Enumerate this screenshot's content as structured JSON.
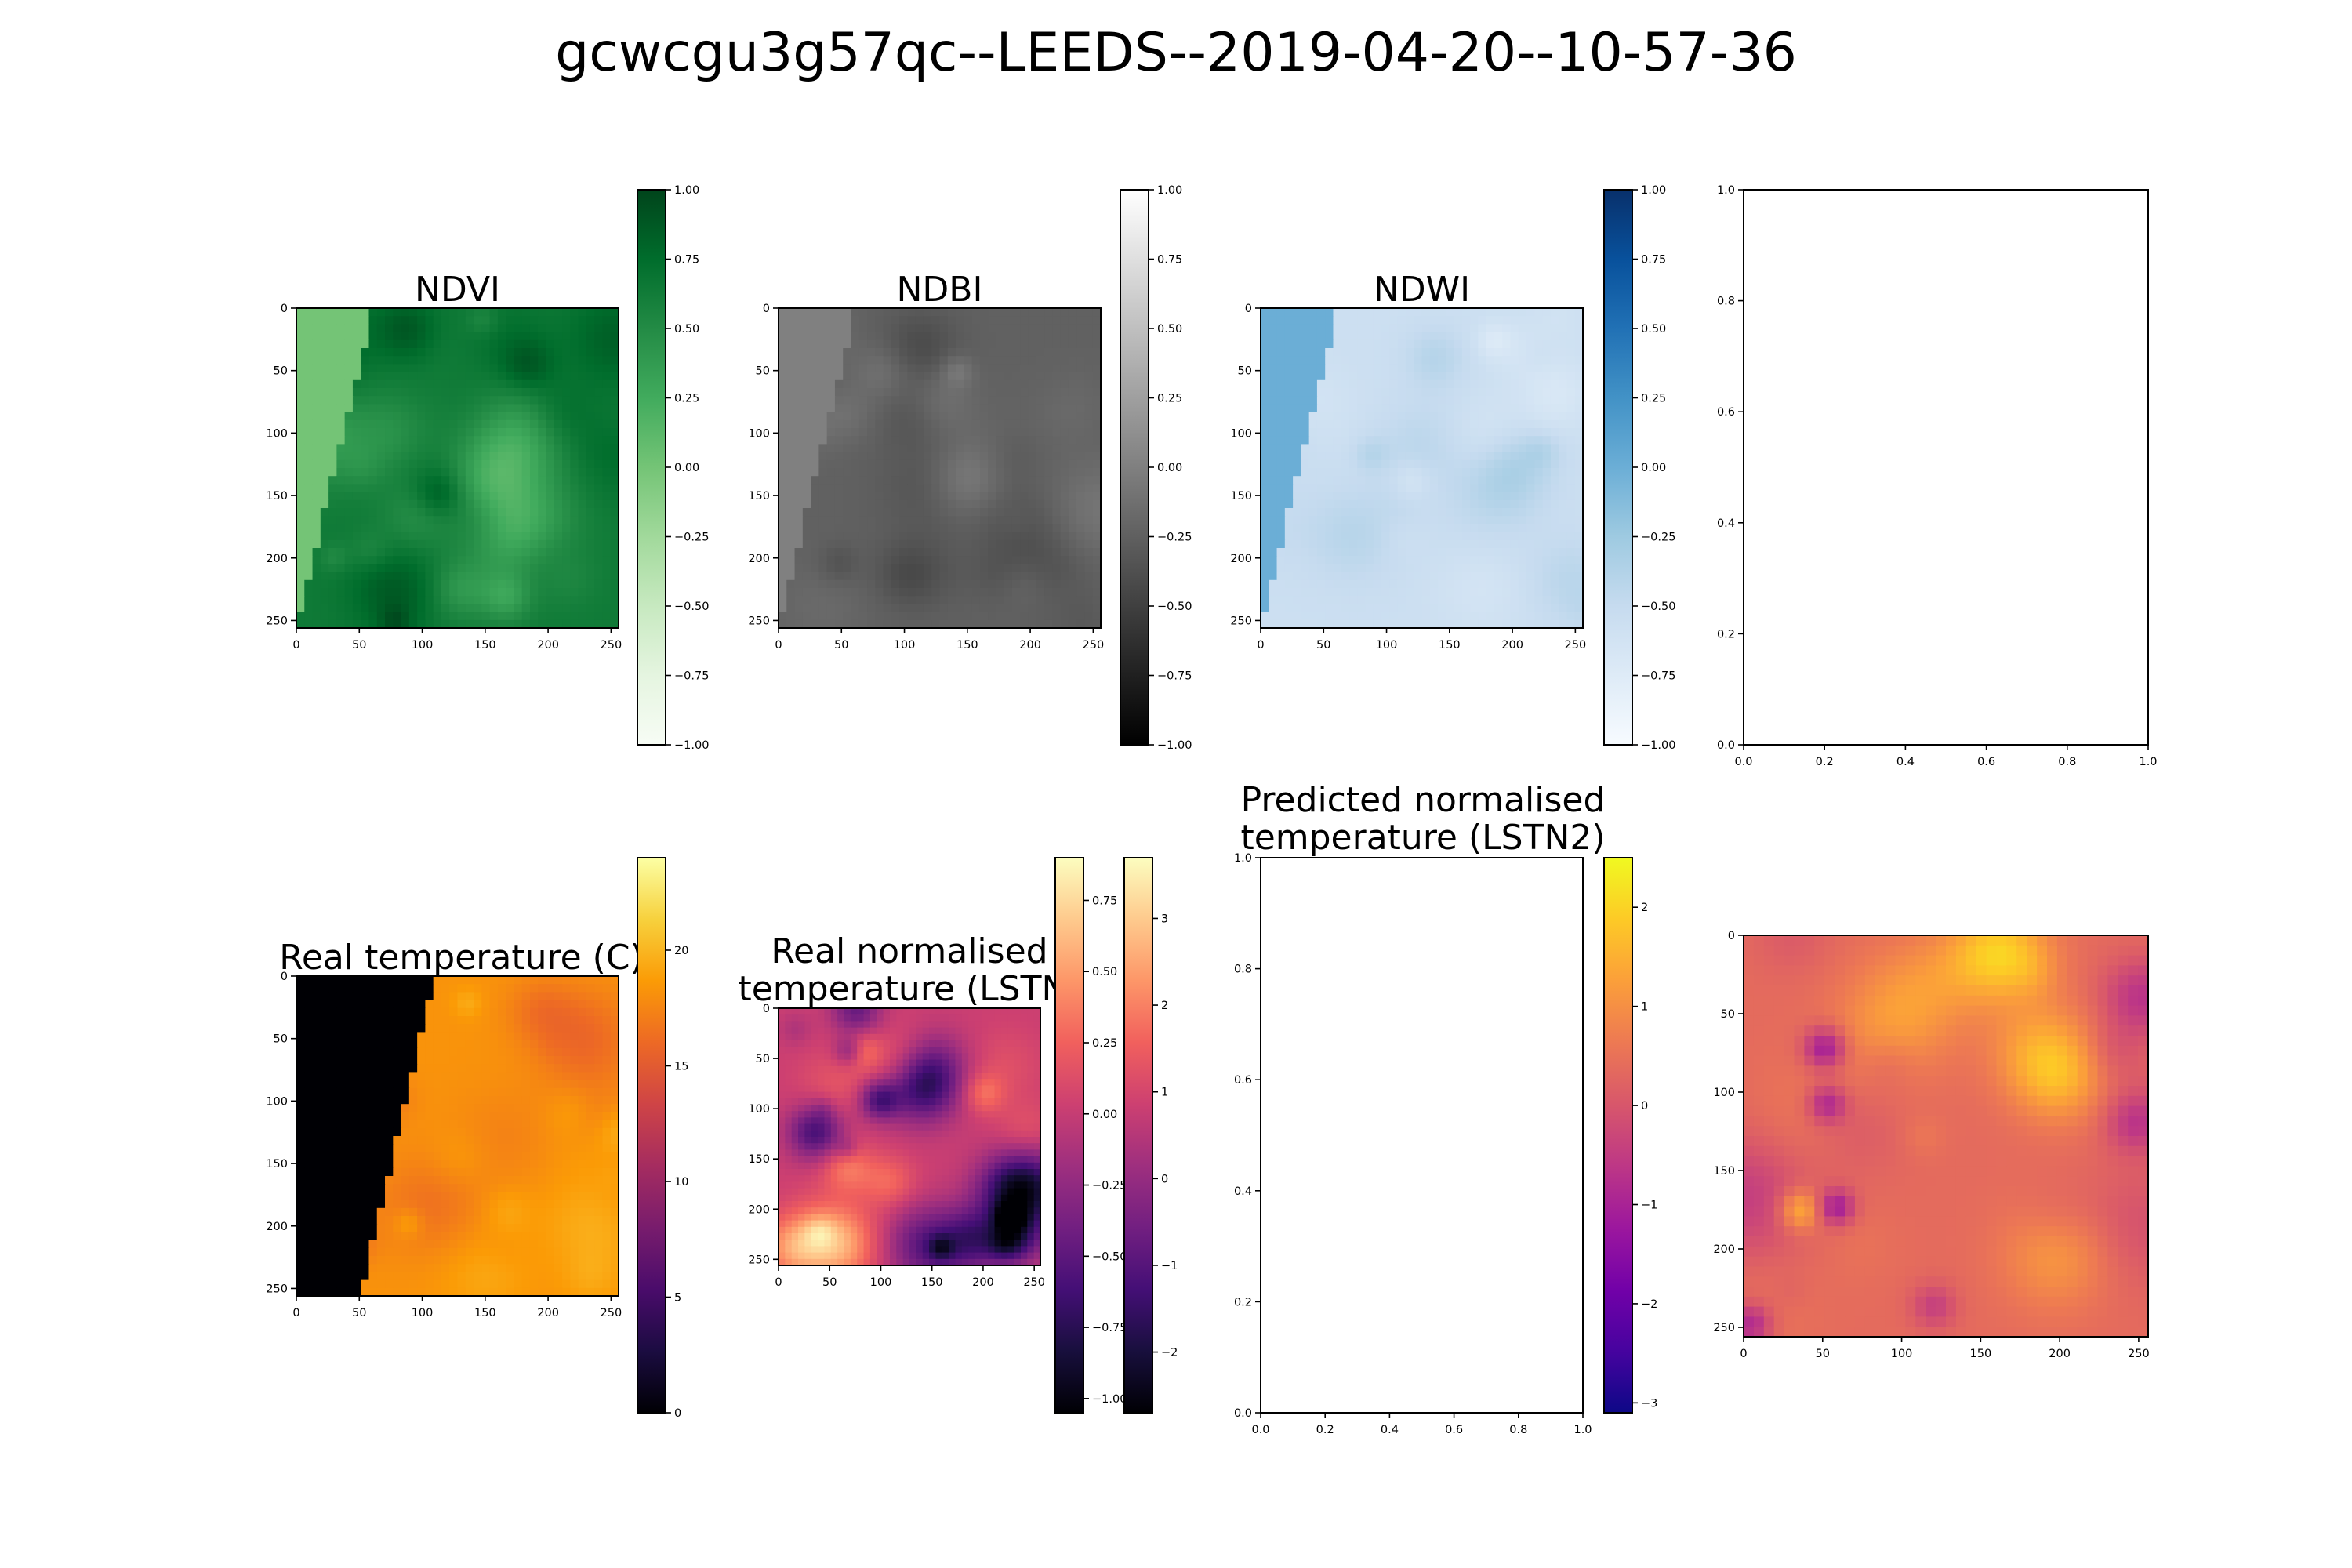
{
  "figure": {
    "title": "gcwcgu3g57qc--LEEDS--2019-04-20--10-57-36"
  },
  "chart_data": [
    {
      "id": "ndvi",
      "type": "heatmap",
      "title": "NDVI",
      "colormap": "Greens",
      "xlim": [
        0,
        256
      ],
      "ylim": [
        256,
        0
      ],
      "xticks": [
        0,
        50,
        100,
        150,
        200,
        250
      ],
      "yticks": [
        0,
        50,
        100,
        150,
        200,
        250
      ],
      "colorbar": {
        "range": [
          -1.0,
          1.0
        ],
        "ticks": [
          "1.00",
          "0.75",
          "0.50",
          "0.25",
          "0.00",
          "−0.25",
          "−0.50",
          "−0.75",
          "−1.00"
        ]
      },
      "no_data_value": 0.0,
      "mean_value": 0.6,
      "colors": [
        "#f7fcf5",
        "#e5f5e0",
        "#c7e9c0",
        "#a1d99b",
        "#74c476",
        "#41ab5d",
        "#238b45",
        "#006d2c",
        "#00441b"
      ]
    },
    {
      "id": "ndbi",
      "type": "heatmap",
      "title": "NDBI",
      "colormap": "Greys_r",
      "xlim": [
        0,
        256
      ],
      "ylim": [
        256,
        0
      ],
      "xticks": [
        0,
        50,
        100,
        150,
        200,
        250
      ],
      "yticks": [
        0,
        50,
        100,
        150,
        200,
        250
      ],
      "colorbar": {
        "range": [
          -1.0,
          1.0
        ],
        "ticks": [
          "1.00",
          "0.75",
          "0.50",
          "0.25",
          "0.00",
          "−0.25",
          "−0.50",
          "−0.75",
          "−1.00"
        ]
      },
      "no_data_value": 0.0,
      "mean_value": -0.2,
      "colors": [
        "#000000",
        "#ffffff"
      ]
    },
    {
      "id": "ndwi",
      "type": "heatmap",
      "title": "NDWI",
      "colormap": "Blues",
      "xlim": [
        0,
        256
      ],
      "ylim": [
        256,
        0
      ],
      "xticks": [
        0,
        50,
        100,
        150,
        200,
        250
      ],
      "yticks": [
        0,
        50,
        100,
        150,
        200,
        250
      ],
      "colorbar": {
        "range": [
          -1.0,
          1.0
        ],
        "ticks": [
          "1.00",
          "0.75",
          "0.50",
          "0.25",
          "0.00",
          "−0.25",
          "−0.50",
          "−0.75",
          "−1.00"
        ]
      },
      "no_data_value": 0.0,
      "mean_value": -0.35,
      "colors": [
        "#f7fbff",
        "#deebf7",
        "#c6dbef",
        "#9ecae1",
        "#6baed6",
        "#4292c6",
        "#2171b5",
        "#08519c",
        "#08306b"
      ]
    },
    {
      "id": "empty-top",
      "type": "scatter",
      "title": "",
      "xlim": [
        0.0,
        1.0
      ],
      "ylim": [
        0.0,
        1.0
      ],
      "xticks": [
        "0.0",
        "0.2",
        "0.4",
        "0.6",
        "0.8",
        "1.0"
      ],
      "yticks": [
        "0.0",
        "0.2",
        "0.4",
        "0.6",
        "0.8",
        "1.0"
      ],
      "series": []
    },
    {
      "id": "lst",
      "type": "heatmap",
      "title": "Real temperature (C)",
      "colormap": "inferno",
      "xlim": [
        0,
        256
      ],
      "ylim": [
        256,
        0
      ],
      "xticks": [
        0,
        50,
        100,
        150,
        200,
        250
      ],
      "yticks": [
        0,
        50,
        100,
        150,
        200,
        250
      ],
      "colorbar": {
        "range": [
          0,
          24
        ],
        "ticks": [
          "20",
          "15",
          "10",
          "5",
          "0"
        ]
      },
      "no_data_value": 0,
      "mean_value": 18,
      "colors": [
        "#000004",
        "#1b0c41",
        "#4a0c6b",
        "#781c6d",
        "#a52c60",
        "#cf4446",
        "#ed6925",
        "#fb9b06",
        "#f7d13d",
        "#fcffa4"
      ]
    },
    {
      "id": "lstn",
      "type": "heatmap",
      "title": "Real normalised temperature (LSTN)",
      "colormap": "magma",
      "xlim": [
        0,
        256
      ],
      "ylim": [
        256,
        0
      ],
      "xticks": [
        0,
        50,
        100,
        150,
        200,
        250
      ],
      "yticks": [
        0,
        50,
        100,
        150,
        200,
        250
      ],
      "colorbar": {
        "range": [
          -1.05,
          0.9
        ],
        "ticks": [
          "0.75",
          "0.50",
          "0.25",
          "0.00",
          "−0.25",
          "−0.50",
          "−0.75",
          "−1.00"
        ]
      },
      "colorbar2": {
        "range": [
          -2.7,
          3.7
        ],
        "ticks": [
          "3",
          "2",
          "1",
          "0",
          "−1",
          "−2"
        ]
      },
      "colors": [
        "#000004",
        "#180f3d",
        "#440f76",
        "#721f81",
        "#9e2f7f",
        "#cd4071",
        "#f1605d",
        "#fd9668",
        "#feca8d",
        "#fcfdbf"
      ]
    },
    {
      "id": "predicted",
      "type": "scatter",
      "title": "Predicted normalised temperature (LSTN2)",
      "xlim": [
        0.0,
        1.0
      ],
      "ylim": [
        0.0,
        1.0
      ],
      "xticks": [
        "0.0",
        "0.2",
        "0.4",
        "0.6",
        "0.8",
        "1.0"
      ],
      "yticks": [
        "0.0",
        "0.2",
        "0.4",
        "0.6",
        "0.8",
        "1.0"
      ],
      "colorbar": {
        "range": [
          -3.1,
          2.5
        ],
        "ticks": [
          "2",
          "1",
          "0",
          "−1",
          "−2",
          "−3"
        ]
      },
      "colors": [
        "#0d0887",
        "#46039f",
        "#7201a8",
        "#9c179e",
        "#bd3786",
        "#d8576b",
        "#ed7953",
        "#fb9f3a",
        "#fdca26",
        "#f0f921"
      ],
      "series": []
    },
    {
      "id": "lstn2",
      "type": "heatmap",
      "title": "",
      "colormap": "plasma",
      "xlim": [
        0,
        256
      ],
      "ylim": [
        256,
        0
      ],
      "xticks": [
        0,
        50,
        100,
        150,
        200,
        250
      ],
      "yticks": [
        0,
        50,
        100,
        150,
        200,
        250
      ],
      "colors": [
        "#0d0887",
        "#46039f",
        "#7201a8",
        "#9c179e",
        "#bd3786",
        "#d8576b",
        "#ed7953",
        "#fb9f3a",
        "#fdca26",
        "#f0f921"
      ]
    }
  ]
}
